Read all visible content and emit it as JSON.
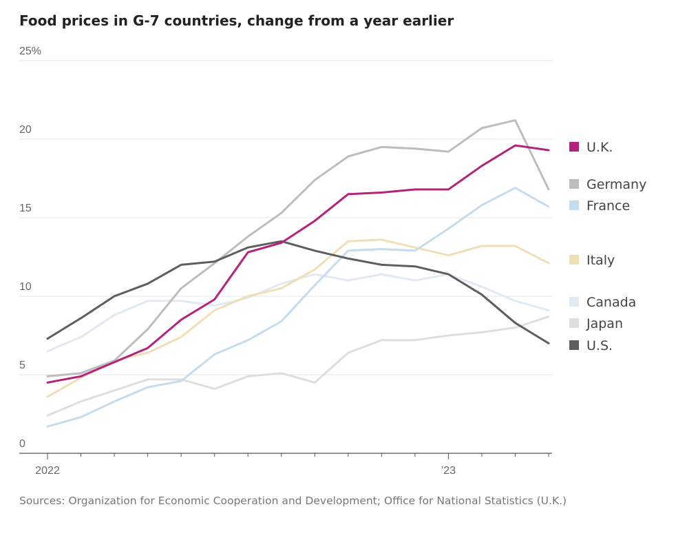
{
  "chart_data": {
    "type": "line",
    "title": "Food prices in G-7 countries, change from a year earlier",
    "source": "Sources: Organization for Economic Cooperation and Development; Office for National Statistics (U.K.)",
    "x_ticks": [
      {
        "index": 0,
        "label": "2022"
      },
      {
        "index": 12,
        "label": "’23"
      }
    ],
    "y_ticks": [
      {
        "value": 0,
        "label": "0"
      },
      {
        "value": 5,
        "label": "5"
      },
      {
        "value": 10,
        "label": "10"
      },
      {
        "value": 15,
        "label": "15"
      },
      {
        "value": 20,
        "label": "20"
      },
      {
        "value": 25,
        "label": "25%"
      }
    ],
    "ylim": [
      0,
      25
    ],
    "months": 16,
    "series": [
      {
        "name": "Japan",
        "color": "#dedede",
        "values": [
          2.4,
          3.3,
          4.0,
          4.7,
          4.7,
          4.1,
          4.9,
          5.1,
          4.5,
          6.4,
          7.2,
          7.2,
          7.5,
          7.7,
          8.0,
          8.7
        ]
      },
      {
        "name": "Canada",
        "color": "#e1e9f3",
        "values": [
          6.5,
          7.4,
          8.8,
          9.7,
          9.7,
          9.4,
          9.9,
          10.8,
          11.4,
          11.0,
          11.4,
          11.0,
          11.4,
          10.6,
          9.7,
          9.1
        ]
      },
      {
        "name": "Italy",
        "color": "#efdfb5",
        "values": [
          3.6,
          4.8,
          5.9,
          6.4,
          7.4,
          9.1,
          10.0,
          10.5,
          11.7,
          13.5,
          13.6,
          13.1,
          12.6,
          13.2,
          13.2,
          12.1
        ]
      },
      {
        "name": "France",
        "color": "#c4dcee",
        "values": [
          1.7,
          2.3,
          3.3,
          4.2,
          4.6,
          6.3,
          7.2,
          8.4,
          10.7,
          12.9,
          13.0,
          12.9,
          14.3,
          15.8,
          16.9,
          15.7
        ]
      },
      {
        "name": "Germany",
        "color": "#bdbdbd",
        "values": [
          4.9,
          5.1,
          5.9,
          7.9,
          10.5,
          12.1,
          13.8,
          15.3,
          17.4,
          18.9,
          19.5,
          19.4,
          19.2,
          20.7,
          21.2,
          16.8
        ]
      },
      {
        "name": "U.S.",
        "color": "#5e5e5e",
        "values": [
          7.3,
          8.6,
          10.0,
          10.8,
          12.0,
          12.2,
          13.1,
          13.5,
          12.9,
          12.4,
          12.0,
          11.9,
          11.4,
          10.1,
          8.3,
          7.0
        ]
      },
      {
        "name": "U.K.",
        "color": "#b4237b",
        "values": [
          4.5,
          4.9,
          5.8,
          6.7,
          8.5,
          9.8,
          12.8,
          13.4,
          14.8,
          16.5,
          16.6,
          16.8,
          16.8,
          18.3,
          19.6,
          19.3
        ]
      }
    ],
    "legend": [
      {
        "name": "U.K.",
        "color": "#b4237b"
      },
      {
        "name": "Germany",
        "color": "#bdbdbd"
      },
      {
        "name": "France",
        "color": "#c4dcee"
      },
      {
        "name": "Italy",
        "color": "#efdfb5"
      },
      {
        "name": "Canada",
        "color": "#e1e9f3"
      },
      {
        "name": "Japan",
        "color": "#dedede"
      },
      {
        "name": "U.S.",
        "color": "#5e5e5e"
      }
    ],
    "xlabel": "",
    "ylabel": ""
  }
}
